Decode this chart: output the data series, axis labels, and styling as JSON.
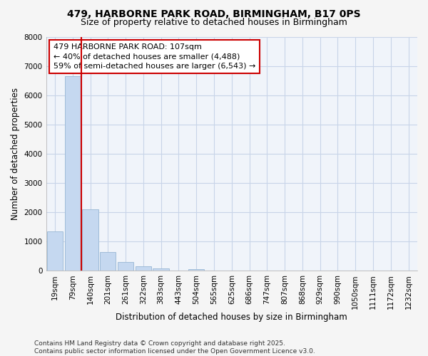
{
  "title_line1": "479, HARBORNE PARK ROAD, BIRMINGHAM, B17 0PS",
  "title_line2": "Size of property relative to detached houses in Birmingham",
  "xlabel": "Distribution of detached houses by size in Birmingham",
  "ylabel": "Number of detached properties",
  "categories": [
    "19sqm",
    "79sqm",
    "140sqm",
    "201sqm",
    "261sqm",
    "322sqm",
    "383sqm",
    "443sqm",
    "504sqm",
    "565sqm",
    "625sqm",
    "686sqm",
    "747sqm",
    "807sqm",
    "868sqm",
    "929sqm",
    "990sqm",
    "1050sqm",
    "1111sqm",
    "1172sqm",
    "1232sqm"
  ],
  "values": [
    1340,
    6650,
    2100,
    640,
    310,
    160,
    80,
    0,
    60,
    0,
    0,
    0,
    0,
    0,
    0,
    0,
    0,
    0,
    0,
    0,
    0
  ],
  "bar_color": "#c5d8f0",
  "bar_edge_color": "#a0bcd8",
  "vline_x": 1.5,
  "vline_color": "#cc0000",
  "annotation_text": "479 HARBORNE PARK ROAD: 107sqm\n← 40% of detached houses are smaller (4,488)\n59% of semi-detached houses are larger (6,543) →",
  "annotation_box_color": "white",
  "annotation_box_edge_color": "#cc0000",
  "ylim": [
    0,
    8000
  ],
  "yticks": [
    0,
    1000,
    2000,
    3000,
    4000,
    5000,
    6000,
    7000,
    8000
  ],
  "bg_color": "#f5f5f5",
  "plot_bg_color": "#f0f4fa",
  "grid_color": "#c8d4e8",
  "footer": "Contains HM Land Registry data © Crown copyright and database right 2025.\nContains public sector information licensed under the Open Government Licence v3.0.",
  "title_fontsize": 10,
  "subtitle_fontsize": 9,
  "tick_fontsize": 7.5,
  "ylabel_fontsize": 8.5,
  "xlabel_fontsize": 8.5,
  "annotation_fontsize": 8,
  "footer_fontsize": 6.5
}
